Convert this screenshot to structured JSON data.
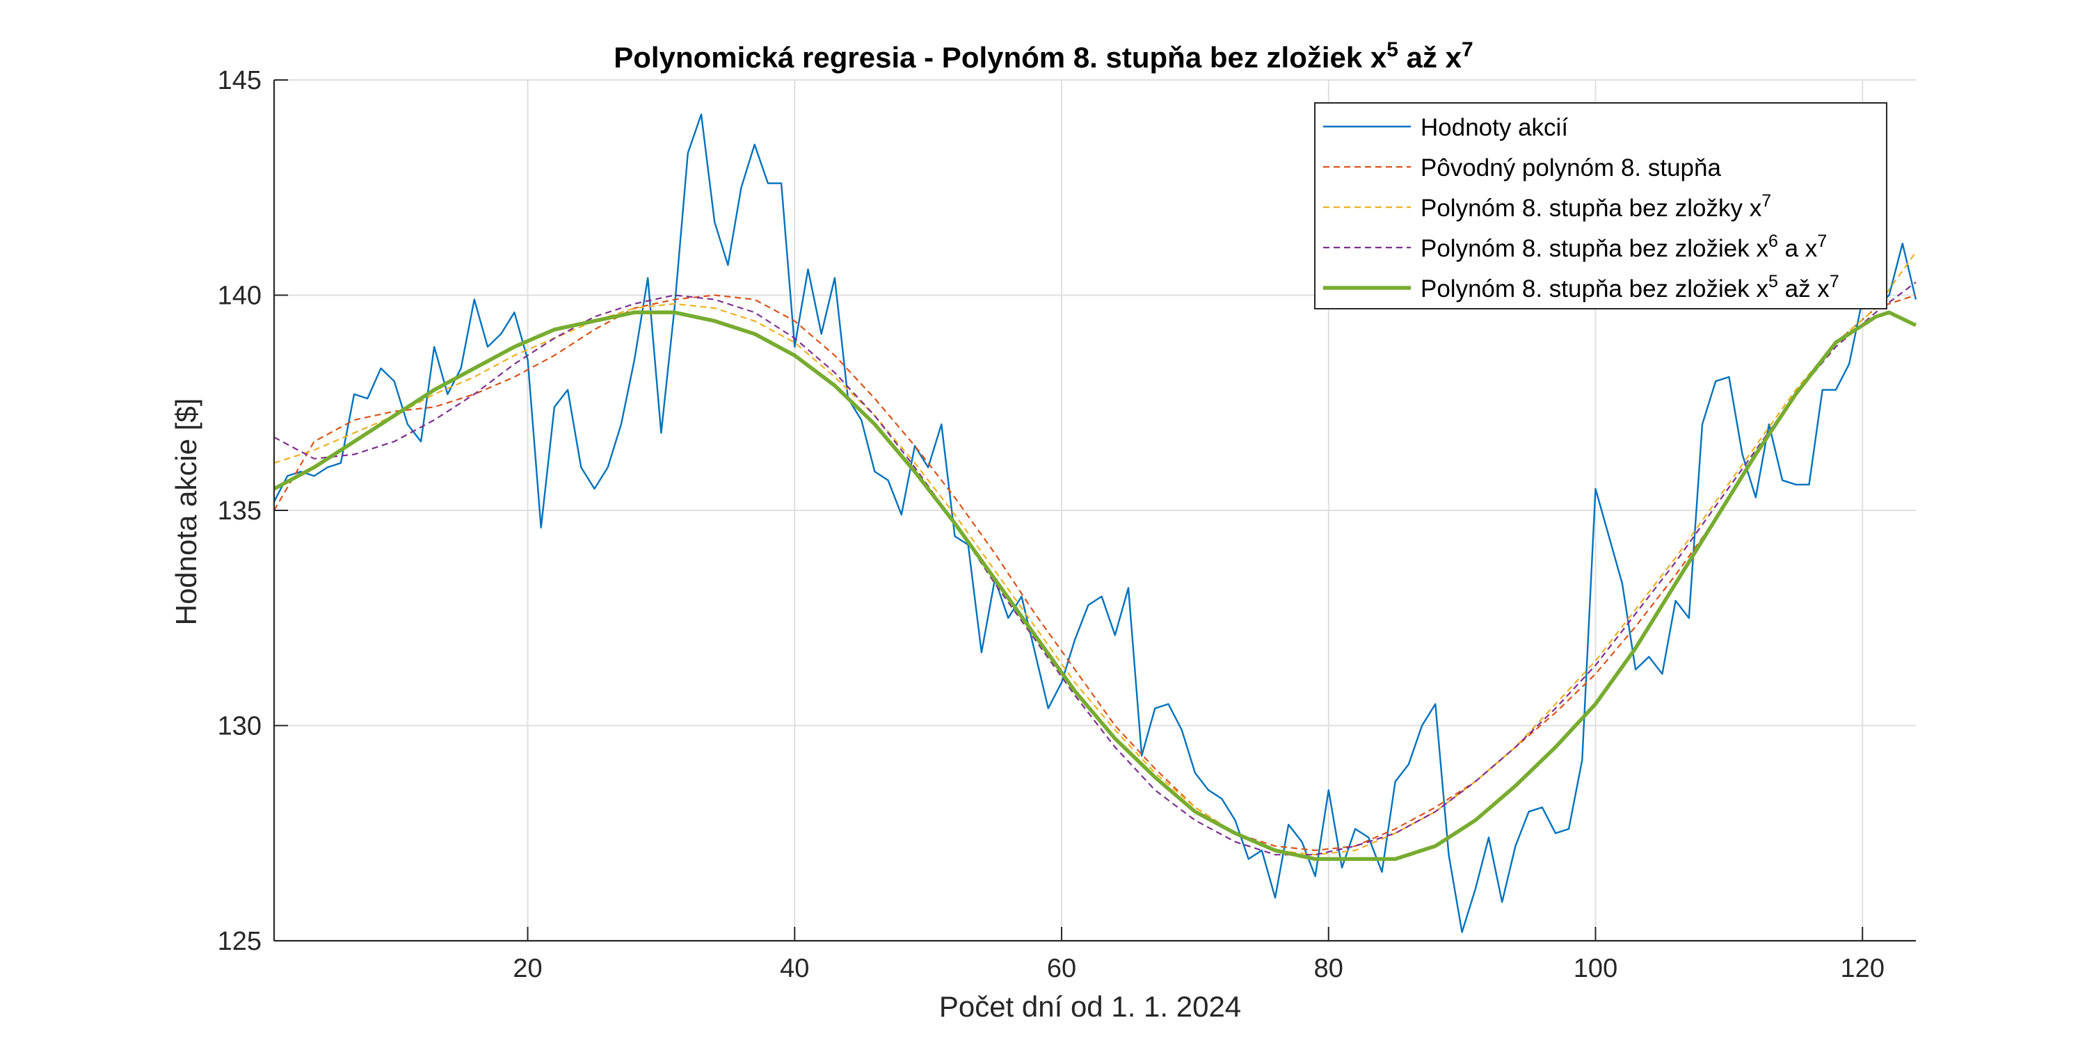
{
  "chart_data": {
    "type": "line",
    "title": {
      "prefix": "Polynomická regresia - Polynóm 8. stupňa bez zložiek x",
      "sup1": "5",
      "middle": " až x",
      "sup2": "7"
    },
    "xlabel": "Počet dní od 1. 1. 2024",
    "ylabel": "Hodnota akcie [$]",
    "xlim": [
      1,
      124
    ],
    "ylim": [
      125,
      145
    ],
    "xticks": [
      20,
      40,
      60,
      80,
      100,
      120
    ],
    "yticks": [
      125,
      130,
      135,
      140,
      145
    ],
    "grid": true,
    "legend_position": "top-right",
    "series": [
      {
        "name": "Hodnoty akcií",
        "color": "#0072BD",
        "style": "solid",
        "legend": {
          "text": "Hodnoty akcií"
        },
        "x": [
          1,
          2,
          3,
          4,
          5,
          6,
          7,
          8,
          9,
          10,
          11,
          12,
          13,
          14,
          15,
          16,
          17,
          18,
          19,
          20,
          21,
          22,
          23,
          24,
          25,
          26,
          27,
          28,
          29,
          30,
          31,
          32,
          33,
          34,
          35,
          36,
          37,
          38,
          39,
          40,
          41,
          42,
          43,
          44,
          45,
          46,
          47,
          48,
          49,
          50,
          51,
          52,
          53,
          54,
          55,
          56,
          57,
          58,
          59,
          60,
          61,
          62,
          63,
          64,
          65,
          66,
          67,
          68,
          69,
          70,
          71,
          72,
          73,
          74,
          75,
          76,
          77,
          78,
          79,
          80,
          81,
          82,
          83,
          84,
          85,
          86,
          87,
          88,
          89,
          90,
          91,
          92,
          93,
          94,
          95,
          96,
          97,
          98,
          99,
          100,
          101,
          102,
          103,
          104,
          105,
          106,
          107,
          108,
          109,
          110,
          111,
          112,
          113,
          114,
          115,
          116,
          117,
          118,
          119,
          120,
          121,
          122,
          123,
          124
        ],
        "y": [
          135.2,
          135.8,
          135.9,
          135.8,
          136.0,
          136.1,
          137.7,
          137.6,
          138.3,
          138.0,
          137.0,
          136.6,
          138.8,
          137.7,
          138.3,
          139.9,
          138.8,
          139.1,
          139.6,
          138.5,
          134.6,
          137.4,
          137.8,
          136.0,
          135.5,
          136.0,
          137.0,
          138.5,
          140.4,
          136.8,
          139.7,
          143.3,
          144.2,
          141.7,
          140.7,
          142.5,
          143.5,
          142.6,
          142.6,
          138.8,
          140.6,
          139.1,
          140.4,
          137.6,
          137.1,
          135.9,
          135.7,
          134.9,
          136.5,
          136.0,
          137.0,
          134.4,
          134.2,
          131.7,
          133.4,
          132.5,
          133.0,
          131.7,
          130.4,
          131.0,
          132.0,
          132.8,
          133.0,
          132.1,
          133.2,
          129.3,
          130.4,
          130.5,
          129.9,
          128.9,
          128.5,
          128.3,
          127.8,
          126.9,
          127.1,
          126.0,
          127.7,
          127.3,
          126.5,
          128.5,
          126.7,
          127.6,
          127.4,
          126.6,
          128.7,
          129.1,
          130.0,
          130.5,
          127.0,
          125.2,
          126.2,
          127.4,
          125.9,
          127.2,
          128.0,
          128.1,
          127.5,
          127.6,
          129.2,
          135.5,
          134.4,
          133.3,
          131.3,
          131.6,
          131.2,
          132.9,
          132.5,
          137.0,
          138.0,
          138.1,
          136.3,
          135.3,
          137.0,
          135.7,
          135.6,
          135.6,
          137.8,
          137.8,
          138.4,
          139.9,
          139.7,
          140.0,
          141.2,
          139.9
        ]
      },
      {
        "name": "Pôvodný polynóm 8. stupňa",
        "color": "#D95319",
        "style": "dashed",
        "legend": {
          "text": "Pôvodný polynóm 8. stupňa"
        },
        "x": [
          1,
          4,
          7,
          10,
          13,
          16,
          19,
          22,
          25,
          28,
          31,
          34,
          37,
          40,
          43,
          46,
          49,
          52,
          55,
          58,
          61,
          64,
          67,
          70,
          73,
          76,
          79,
          82,
          85,
          88,
          91,
          94,
          97,
          100,
          103,
          106,
          109,
          112,
          115,
          118,
          121,
          124
        ],
        "y": [
          135.0,
          136.6,
          137.1,
          137.3,
          137.4,
          137.7,
          138.1,
          138.6,
          139.2,
          139.7,
          139.9,
          140.0,
          139.9,
          139.4,
          138.6,
          137.6,
          136.5,
          135.3,
          134.0,
          132.6,
          131.3,
          130.0,
          129.0,
          128.1,
          127.5,
          127.2,
          127.1,
          127.2,
          127.6,
          128.1,
          128.7,
          129.5,
          130.3,
          131.2,
          132.3,
          133.5,
          134.8,
          136.3,
          137.7,
          138.9,
          139.7,
          140.0
        ]
      },
      {
        "name": "Polynóm 8. stupňa bez zložky x7",
        "color": "#EDB120",
        "style": "dashed",
        "legend": {
          "text": "Polynóm 8. stupňa bez zložky x",
          "sup": "7",
          "suffix": ""
        },
        "x": [
          1,
          4,
          7,
          10,
          13,
          16,
          19,
          22,
          25,
          28,
          31,
          34,
          37,
          40,
          43,
          46,
          49,
          52,
          55,
          58,
          61,
          64,
          67,
          70,
          73,
          76,
          79,
          82,
          85,
          88,
          91,
          94,
          97,
          100,
          103,
          106,
          109,
          112,
          115,
          118,
          121,
          124
        ],
        "y": [
          136.1,
          136.4,
          136.8,
          137.2,
          137.7,
          138.1,
          138.6,
          139.0,
          139.4,
          139.7,
          139.8,
          139.7,
          139.4,
          138.9,
          138.1,
          137.2,
          136.1,
          134.9,
          133.6,
          132.3,
          131.0,
          129.9,
          128.9,
          128.1,
          127.5,
          127.1,
          127.0,
          127.1,
          127.5,
          128.0,
          128.7,
          129.5,
          130.5,
          131.5,
          132.7,
          133.9,
          135.2,
          136.5,
          137.8,
          138.9,
          139.7,
          141.0
        ]
      },
      {
        "name": "Polynóm 8. stupňa bez zložiek x6 a x7",
        "color": "#7E2F8E",
        "style": "dashed",
        "legend": {
          "text": "Polynóm 8. stupňa bez zložiek x",
          "sup": "6",
          "suffix": " a x",
          "sup2": "7"
        },
        "x": [
          1,
          4,
          7,
          10,
          13,
          16,
          19,
          22,
          25,
          28,
          31,
          34,
          37,
          40,
          43,
          46,
          49,
          52,
          55,
          58,
          61,
          64,
          67,
          70,
          73,
          76,
          79,
          82,
          85,
          88,
          91,
          94,
          97,
          100,
          103,
          106,
          109,
          112,
          115,
          118,
          121,
          124
        ],
        "y": [
          136.7,
          136.2,
          136.3,
          136.6,
          137.1,
          137.7,
          138.4,
          139.0,
          139.5,
          139.8,
          140.0,
          139.9,
          139.6,
          139.0,
          138.2,
          137.2,
          136.0,
          134.7,
          133.3,
          132.0,
          130.7,
          129.5,
          128.5,
          127.8,
          127.3,
          127.0,
          127.0,
          127.2,
          127.5,
          128.0,
          128.7,
          129.5,
          130.4,
          131.4,
          132.6,
          133.8,
          135.1,
          136.4,
          137.7,
          138.8,
          139.6,
          140.3
        ]
      },
      {
        "name": "Polynóm 8. stupňa bez zložiek x5 až x7",
        "color": "#77AC30",
        "style": "solid-thick",
        "legend": {
          "text": "Polynóm 8. stupňa bez zložiek x",
          "sup": "5",
          "suffix": " až x",
          "sup2": "7"
        },
        "x": [
          1,
          4,
          7,
          10,
          13,
          16,
          19,
          22,
          25,
          28,
          31,
          34,
          37,
          40,
          43,
          46,
          49,
          52,
          55,
          58,
          61,
          64,
          67,
          70,
          73,
          76,
          79,
          82,
          85,
          88,
          91,
          94,
          97,
          100,
          103,
          106,
          109,
          112,
          115,
          118,
          121,
          122,
          124
        ],
        "y": [
          135.5,
          136.0,
          136.6,
          137.2,
          137.8,
          138.3,
          138.8,
          139.2,
          139.4,
          139.6,
          139.6,
          139.4,
          139.1,
          138.6,
          137.9,
          137.0,
          135.9,
          134.7,
          133.4,
          132.1,
          130.8,
          129.7,
          128.8,
          128.0,
          127.5,
          127.1,
          126.9,
          126.9,
          126.9,
          127.2,
          127.8,
          128.6,
          129.5,
          130.5,
          131.8,
          133.3,
          134.8,
          136.3,
          137.7,
          138.9,
          139.5,
          139.6,
          139.3
        ]
      }
    ]
  }
}
